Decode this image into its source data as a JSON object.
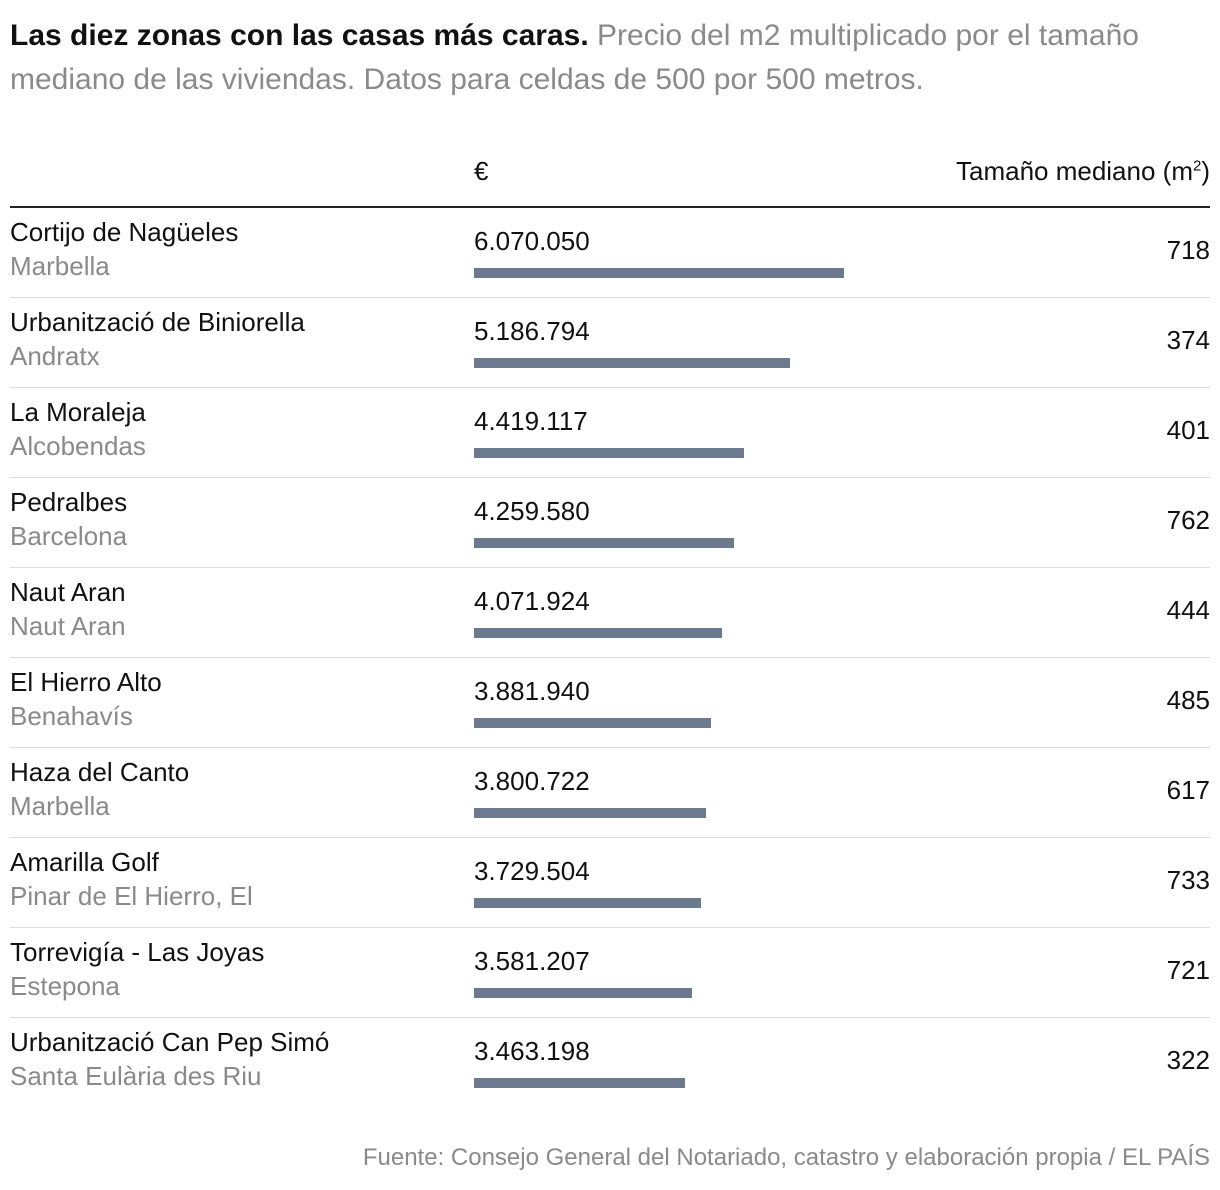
{
  "header": {
    "title": "Las diez zonas con las casas más caras",
    "title_suffix": ".",
    "subtitle": " Precio del m2 multiplicado por el tamaño mediano de las viviendas. Datos para celdas de 500 por 500 metros."
  },
  "columns": {
    "price_label": "€",
    "size_label": "Tamaño mediano (m",
    "size_sup": "2",
    "size_close": ")"
  },
  "colors": {
    "bar": "#6b7a8f",
    "muted_text": "#8a8a8a"
  },
  "chart_data": {
    "type": "bar",
    "orientation": "horizontal",
    "xlim": [
      0,
      10000000
    ],
    "categories": [
      "Cortijo de Nagüeles",
      "Urbanització de Biniorella",
      "La Moraleja",
      "Pedralbes",
      "Naut Aran",
      "El Hierro Alto",
      "Haza del Canto",
      "Amarilla Golf",
      "Torrevigía - Las Joyas",
      "Urbanització Can Pep Simó"
    ],
    "rows": [
      {
        "zone": "Cortijo de Nagüeles",
        "municipality": "Marbella",
        "price": 6070050,
        "price_label": "6.070.050",
        "size_m2": 718,
        "size_label": "718"
      },
      {
        "zone": "Urbanització de Biniorella",
        "municipality": "Andratx",
        "price": 5186794,
        "price_label": "5.186.794",
        "size_m2": 374,
        "size_label": "374"
      },
      {
        "zone": "La Moraleja",
        "municipality": "Alcobendas",
        "price": 4419117,
        "price_label": "4.419.117",
        "size_m2": 401,
        "size_label": "401"
      },
      {
        "zone": "Pedralbes",
        "municipality": "Barcelona",
        "price": 4259580,
        "price_label": "4.259.580",
        "size_m2": 762,
        "size_label": "762"
      },
      {
        "zone": "Naut Aran",
        "municipality": "Naut Aran",
        "price": 4071924,
        "price_label": "4.071.924",
        "size_m2": 444,
        "size_label": "444"
      },
      {
        "zone": "El Hierro Alto",
        "municipality": "Benahavís",
        "price": 3881940,
        "price_label": "3.881.940",
        "size_m2": 485,
        "size_label": "485"
      },
      {
        "zone": "Haza del Canto",
        "municipality": "Marbella",
        "price": 3800722,
        "price_label": "3.800.722",
        "size_m2": 617,
        "size_label": "617"
      },
      {
        "zone": "Amarilla Golf",
        "municipality": "Pinar de El Hierro, El",
        "price": 3729504,
        "price_label": "3.729.504",
        "size_m2": 733,
        "size_label": "733"
      },
      {
        "zone": "Torrevigía - Las Joyas",
        "municipality": "Estepona",
        "price": 3581207,
        "price_label": "3.581.207",
        "size_m2": 721,
        "size_label": "721"
      },
      {
        "zone": "Urbanització Can Pep Simó",
        "municipality": "Santa Eulària des Riu",
        "price": 3463198,
        "price_label": "3.463.198",
        "size_m2": 322,
        "size_label": "322"
      }
    ]
  },
  "footer": {
    "source": "Fuente: Consejo General del Notariado, catastro y elaboración propia / EL PAÍS"
  }
}
